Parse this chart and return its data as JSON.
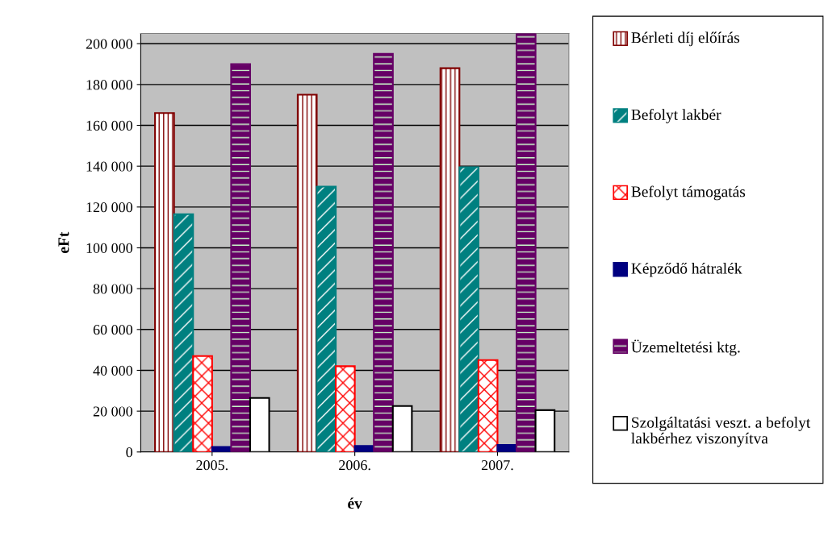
{
  "chart_data": {
    "type": "bar",
    "xlabel": "év",
    "ylabel": "eFt",
    "categories": [
      "2005.",
      "2006.",
      "2007."
    ],
    "series": [
      {
        "name": "Bérleti díj előírás",
        "color": "#800000",
        "values": [
          166000,
          175000,
          188000
        ]
      },
      {
        "name": "Befolyt lakbér",
        "color": "#008080",
        "values": [
          116500,
          130000,
          139500
        ]
      },
      {
        "name": "Befolyt támogatás",
        "color": "#ff0000",
        "values": [
          47000,
          42000,
          45000
        ]
      },
      {
        "name": "Képződő hátralék",
        "color": "#000080",
        "values": [
          2500,
          3000,
          3500
        ]
      },
      {
        "name": "Üzemeltetési ktg.",
        "color": "#660066",
        "values": [
          190000,
          195000,
          205000
        ]
      },
      {
        "name": "Szolgáltatási veszt. a befolyt lakbérhez viszonyítva",
        "color": "#ffffff",
        "values": [
          26500,
          22500,
          20500
        ]
      }
    ],
    "ylim": [
      0,
      205000
    ],
    "yticks": [
      {
        "value": 0,
        "label": "0"
      },
      {
        "value": 20000,
        "label": "20 000"
      },
      {
        "value": 40000,
        "label": "40 000"
      },
      {
        "value": 60000,
        "label": "60 000"
      },
      {
        "value": 80000,
        "label": "80 000"
      },
      {
        "value": 100000,
        "label": "100 000"
      },
      {
        "value": 120000,
        "label": "120 000"
      },
      {
        "value": 140000,
        "label": "140 000"
      },
      {
        "value": 160000,
        "label": "160 000"
      },
      {
        "value": 180000,
        "label": "180 000"
      },
      {
        "value": 200000,
        "label": "200 000"
      }
    ],
    "grid": "y",
    "legend": "right"
  }
}
